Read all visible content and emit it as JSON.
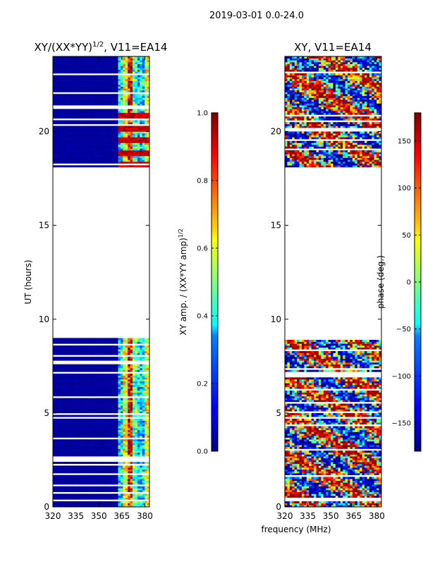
{
  "figure_title": "2019-03-01 0.0-24.0",
  "xlabel_shared": "frequency (MHz)",
  "chart_data": [
    {
      "type": "heatmap",
      "title_main": "XY/(XX*YY)",
      "title_sup": "1/2",
      "title_tail": ", V11=EA14",
      "ylabel": "UT (hours)",
      "xlim": [
        320,
        383
      ],
      "ylim": [
        0,
        24
      ],
      "x_ticks": [
        320,
        335,
        350,
        365,
        380
      ],
      "y_ticks": [
        0,
        5,
        10,
        15,
        20
      ],
      "colorbar": {
        "label_main": "XY amp. / (XX*YY amp)",
        "label_sup": "1/2",
        "range": [
          0.0,
          1.0
        ],
        "ticks": [
          "0.0",
          "0.2",
          "0.4",
          "0.6",
          "0.8",
          "1.0"
        ],
        "tick_values": [
          0.0,
          0.2,
          0.4,
          0.6,
          0.8,
          1.0
        ]
      },
      "data_time_ranges_hours": [
        [
          0.0,
          9.0
        ],
        [
          18.0,
          24.0
        ]
      ],
      "description_values": {
        "low_freq_band_MHz": [
          320,
          361
        ],
        "low_freq_value": 0.02,
        "high_freq_band_MHz": [
          361,
          383
        ],
        "high_freq_value_range": [
          0.2,
          0.95
        ]
      }
    },
    {
      "type": "heatmap",
      "title": "XY, V11=EA14",
      "xlim": [
        320,
        383
      ],
      "ylim": [
        0,
        24
      ],
      "x_ticks": [
        320,
        335,
        350,
        365,
        380
      ],
      "y_ticks": [
        0,
        5,
        10,
        15,
        20
      ],
      "colorbar": {
        "label": "phase (deg.)",
        "range": [
          -180,
          180
        ],
        "ticks": [
          "−150",
          "−100",
          "−50",
          "0",
          "50",
          "100",
          "150"
        ],
        "tick_values": [
          -150,
          -100,
          -50,
          0,
          50,
          100,
          150
        ]
      },
      "data_time_ranges_hours": [
        [
          0.0,
          9.0
        ],
        [
          18.0,
          24.0
        ]
      ]
    }
  ]
}
